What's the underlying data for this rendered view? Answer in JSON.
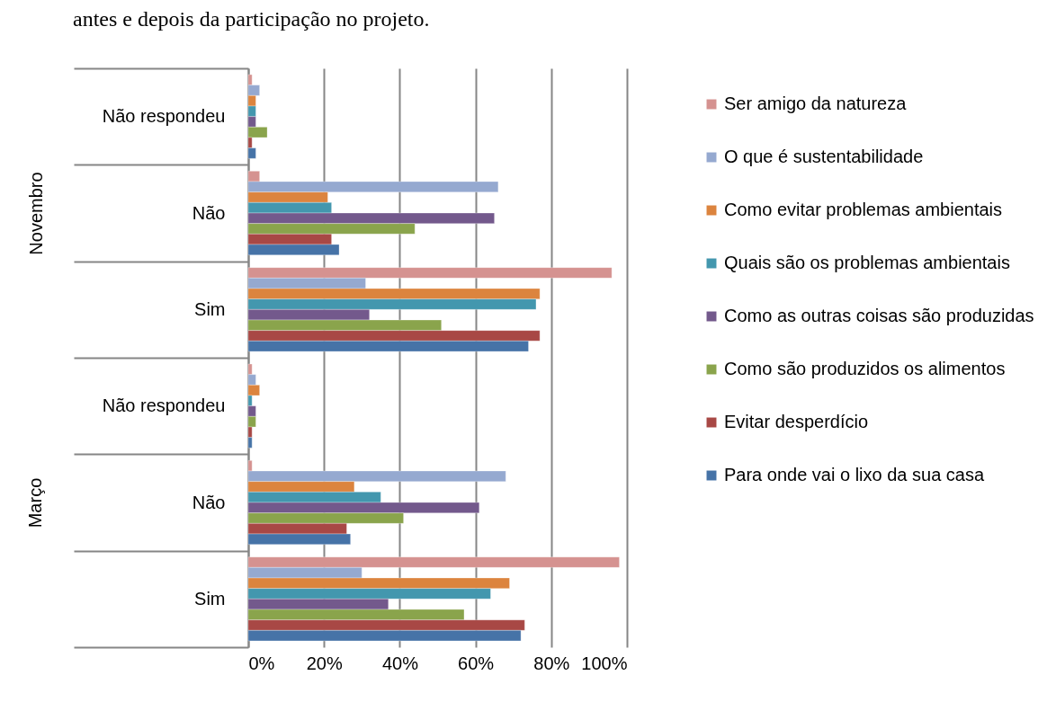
{
  "chart_data": {
    "type": "bar",
    "orientation": "horizontal",
    "title": "antes e depois da participação no projeto.",
    "categories": [
      "Não respondeu",
      "Não",
      "Sim",
      "Não respondeu",
      "Não",
      "Sim"
    ],
    "annotations": [
      "Novembro",
      "Março"
    ],
    "series": [
      {
        "name": "Ser amigo da natureza",
        "color": "#d59290",
        "values": [
          1,
          3,
          96,
          1,
          1,
          98
        ]
      },
      {
        "name": "O que é sustentabilidade",
        "color": "#95a9d0",
        "values": [
          3,
          66,
          31,
          2,
          68,
          30
        ]
      },
      {
        "name": "Como evitar problemas ambientais",
        "color": "#dc843e",
        "values": [
          2,
          21,
          77,
          3,
          28,
          69
        ]
      },
      {
        "name": "Quais são os problemas ambientais",
        "color": "#4397ae",
        "values": [
          2,
          22,
          76,
          1,
          35,
          64
        ]
      },
      {
        "name": "Como as outras coisas são produzidas",
        "color": "#73598c",
        "values": [
          2,
          65,
          32,
          2,
          61,
          37
        ]
      },
      {
        "name": "Como são produzidos os alimentos",
        "color": "#8aa44c",
        "values": [
          5,
          44,
          51,
          2,
          41,
          57
        ]
      },
      {
        "name": "Evitar desperdício",
        "color": "#a84845",
        "values": [
          1,
          22,
          77,
          1,
          26,
          73
        ]
      },
      {
        "name": "Para onde vai o lixo da sua casa",
        "color": "#4673a7",
        "values": [
          2,
          24,
          74,
          1,
          27,
          72
        ]
      }
    ],
    "xlim": [
      0,
      100
    ],
    "xticks": [
      {
        "value": 0,
        "label": "0%"
      },
      {
        "value": 20,
        "label": "20%"
      },
      {
        "value": 40,
        "label": "40%"
      },
      {
        "value": 60,
        "label": "60%"
      },
      {
        "value": 80,
        "label": "80%"
      },
      {
        "value": 100,
        "label": "100%"
      }
    ],
    "grid": "x",
    "legend": "right"
  }
}
